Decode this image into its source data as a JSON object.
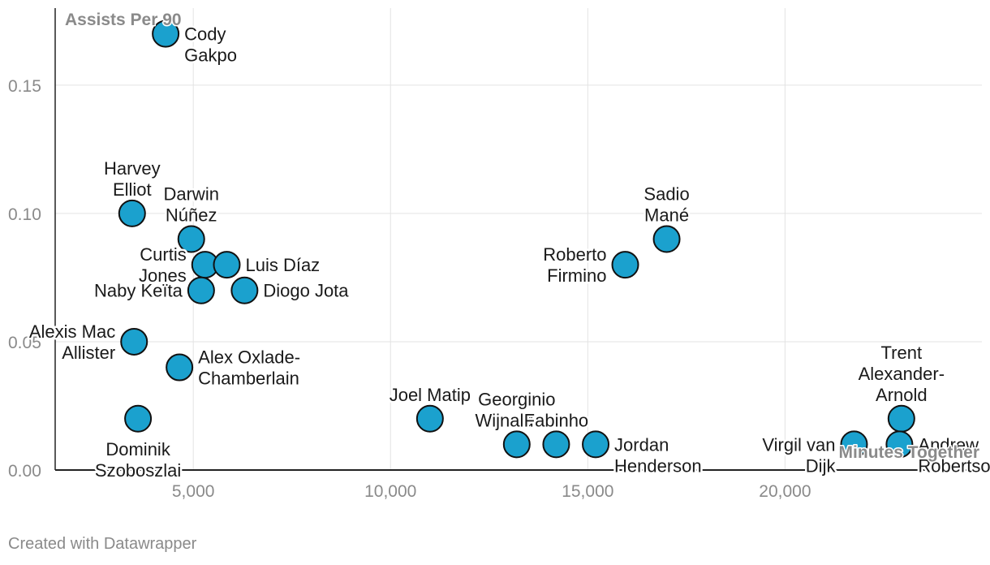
{
  "chart_data": {
    "type": "scatter",
    "title": "",
    "xlabel": "Minutes Together",
    "ylabel": "Assists Per 90",
    "xlim": [
      1500,
      24990
    ],
    "ylim": [
      0,
      0.18
    ],
    "x_ticks": [
      {
        "value": 5000,
        "label": "5,000"
      },
      {
        "value": 10000,
        "label": "10,000"
      },
      {
        "value": 15000,
        "label": "15,000"
      },
      {
        "value": 20000,
        "label": "20,000"
      }
    ],
    "y_ticks": [
      {
        "value": 0,
        "label": "0.00"
      },
      {
        "value": 0.05,
        "label": "0.05"
      },
      {
        "value": 0.1,
        "label": "0.10"
      },
      {
        "value": 0.15,
        "label": "0.15"
      }
    ],
    "marker_color": "#1ba1ce",
    "points": [
      {
        "name": "Cody Gakpo",
        "x": 4300,
        "y": 0.17,
        "label_lines": [
          "Cody",
          "Gakpo"
        ],
        "label_pos": "right-below"
      },
      {
        "name": "Harvey Elliot",
        "x": 3450,
        "y": 0.1,
        "label_lines": [
          "Harvey",
          "Elliot"
        ],
        "label_pos": "above"
      },
      {
        "name": "Darwin Núñez",
        "x": 4950,
        "y": 0.09,
        "label_lines": [
          "Darwin",
          "Núñez"
        ],
        "label_pos": "above"
      },
      {
        "name": "Curtis Jones",
        "x": 5300,
        "y": 0.08,
        "label_lines": [
          "Curtis",
          "Jones"
        ],
        "label_pos": "left"
      },
      {
        "name": "Luis Díaz",
        "x": 5850,
        "y": 0.08,
        "label_lines": [
          "Luis Díaz"
        ],
        "label_pos": "right"
      },
      {
        "name": "Naby Keïta",
        "x": 5200,
        "y": 0.07,
        "label_lines": [
          "Naby Keïta"
        ],
        "label_pos": "left"
      },
      {
        "name": "Diogo Jota",
        "x": 6300,
        "y": 0.07,
        "label_lines": [
          "Diogo Jota"
        ],
        "label_pos": "right"
      },
      {
        "name": "Alexis Mac Allister",
        "x": 3500,
        "y": 0.05,
        "label_lines": [
          "Alexis Mac",
          "Allister"
        ],
        "label_pos": "left"
      },
      {
        "name": "Alex Oxlade-Chamberlain",
        "x": 4650,
        "y": 0.04,
        "label_lines": [
          "Alex Oxlade-",
          "Chamberlain"
        ],
        "label_pos": "right"
      },
      {
        "name": "Dominik Szoboszlai",
        "x": 3600,
        "y": 0.02,
        "label_lines": [
          "Dominik",
          "Szoboszlai"
        ],
        "label_pos": "below"
      },
      {
        "name": "Joel Matip",
        "x": 11000,
        "y": 0.02,
        "label_lines": [
          "Joel Matip"
        ],
        "label_pos": "above"
      },
      {
        "name": "Georginio Wijnaldum",
        "x": 13200,
        "y": 0.01,
        "label_lines": [
          "Georginio",
          "Wijnaldum"
        ],
        "label_pos": "above"
      },
      {
        "name": "Fabinho",
        "x": 14200,
        "y": 0.01,
        "label_lines": [
          "Fabinho"
        ],
        "label_pos": "above"
      },
      {
        "name": "Jordan Henderson",
        "x": 15200,
        "y": 0.01,
        "label_lines": [
          "Jordan",
          "Henderson"
        ],
        "label_pos": "right-below"
      },
      {
        "name": "Roberto Firmino",
        "x": 15950,
        "y": 0.08,
        "label_lines": [
          "Roberto",
          "Firmino"
        ],
        "label_pos": "left"
      },
      {
        "name": "Sadio Mané",
        "x": 17000,
        "y": 0.09,
        "label_lines": [
          "Sadio",
          "Mané"
        ],
        "label_pos": "above"
      },
      {
        "name": "Virgil van Dijk",
        "x": 21750,
        "y": 0.01,
        "label_lines": [
          "Virgil van",
          "Dijk"
        ],
        "label_pos": "left-below"
      },
      {
        "name": "Trent Alexander-Arnold",
        "x": 22950,
        "y": 0.02,
        "label_lines": [
          "Trent",
          "Alexander-",
          "Arnold"
        ],
        "label_pos": "above"
      },
      {
        "name": "Andrew Robertson",
        "x": 22900,
        "y": 0.01,
        "label_lines": [
          "Andrew",
          "Robertson"
        ],
        "label_pos": "right-below"
      }
    ]
  },
  "footer": {
    "credit": "Created with Datawrapper"
  }
}
